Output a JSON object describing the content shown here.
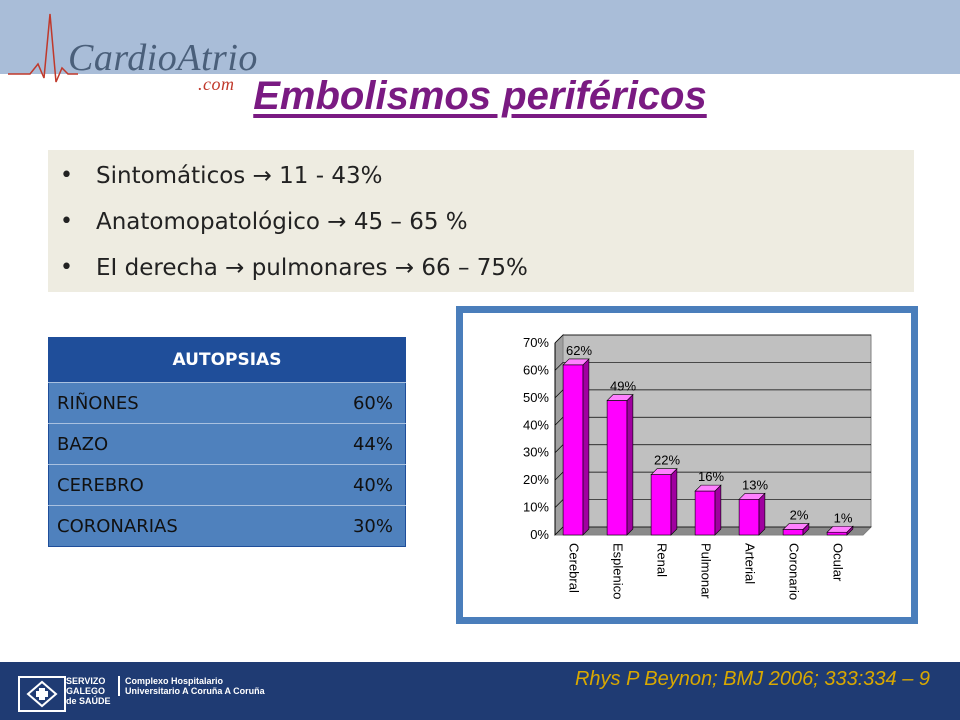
{
  "header": {
    "logo_main": "CardioAtrio",
    "logo_suffix": ".com",
    "title": "Embolismos periféricos"
  },
  "bullets": [
    "Sintomáticos  11 - 43%",
    "Anatomopatológico  45 – 65 %",
    "EI derecha  pulmonares  66 – 75%"
  ],
  "autopsias": {
    "header": "AUTOPSIAS",
    "rows": [
      {
        "label": "RIÑONES",
        "value": "60%"
      },
      {
        "label": "BAZO",
        "value": "44%"
      },
      {
        "label": "CEREBRO",
        "value": "40%"
      },
      {
        "label": "CORONARIAS",
        "value": "30%"
      }
    ]
  },
  "chart_data": {
    "type": "bar",
    "categories": [
      "Cerebral",
      "Esplenico",
      "Renal",
      "Pulmonar",
      "Arterial",
      "Coronario",
      "Ocular"
    ],
    "values": [
      62,
      49,
      22,
      16,
      13,
      2,
      1
    ],
    "data_labels": [
      "62%",
      "49%",
      "22%",
      "16%",
      "13%",
      "2%",
      "1%"
    ],
    "yticks": [
      "0%",
      "10%",
      "20%",
      "30%",
      "40%",
      "50%",
      "60%",
      "70%"
    ],
    "ylim": [
      0,
      70
    ],
    "grid": true,
    "bar_color": "#ff00ff",
    "plot_bg": "#c0c0c0"
  },
  "footer": {
    "citation": "Rhys P Beynon; BMJ 2006; 333:334 – 9",
    "sergas_left": "SERVIZO GALEGO de SAÚDE",
    "sergas_right": "Complexo Hospitalario Universitario A Coruña A Coruña"
  }
}
